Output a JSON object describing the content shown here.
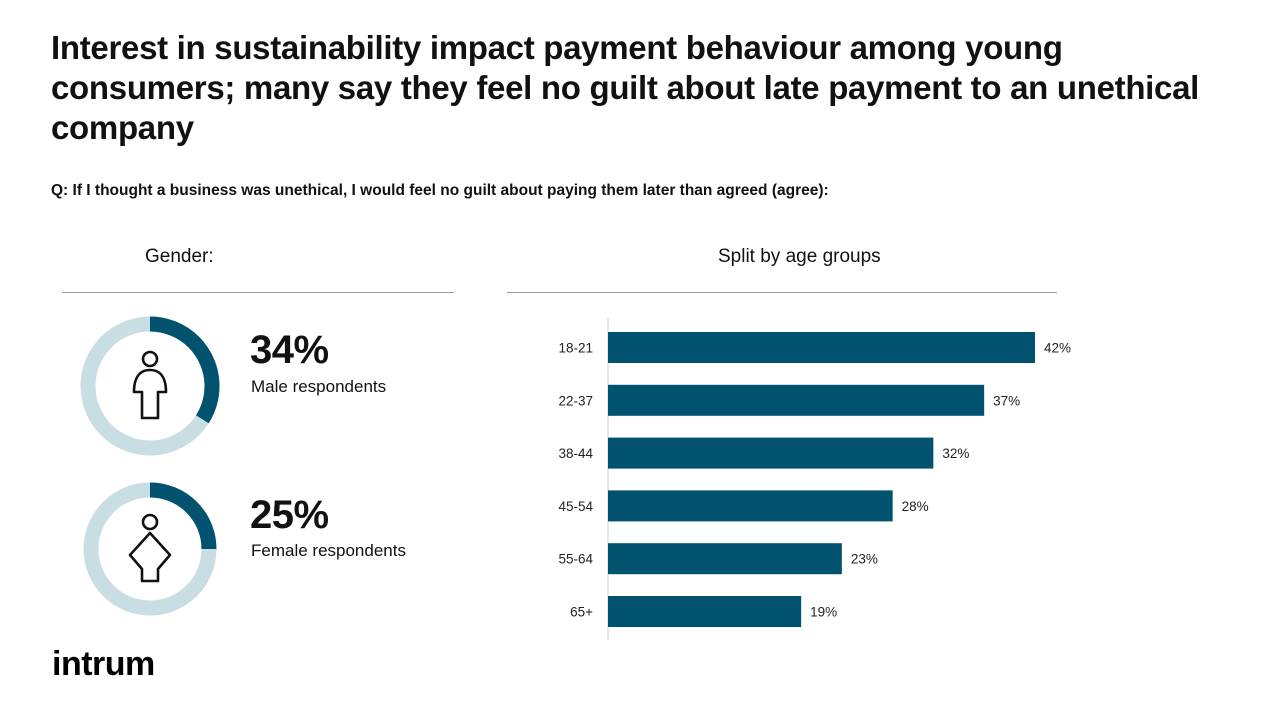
{
  "title": "Interest in sustainability impact payment behaviour among young consumers; many say they feel no guilt about late payment to an unethical company",
  "question": "Q: If I thought a business was unethical, I would feel no guilt about paying them later than agreed (agree):",
  "gender": {
    "heading": "Gender:",
    "items": [
      {
        "pct_label": "34%",
        "value": 34,
        "label": "Male respondents",
        "icon": "male-person-icon"
      },
      {
        "pct_label": "25%",
        "value": 25,
        "label": "Female respondents",
        "icon": "female-person-icon"
      }
    ]
  },
  "age_heading": "Split by age groups",
  "colors": {
    "accent": "#00526E",
    "track": "#C9DEE2"
  },
  "logo": "intrum",
  "chart_data": {
    "type": "bar",
    "orientation": "horizontal",
    "title": "Split by age groups",
    "categories": [
      "18-21",
      "22-37",
      "38-44",
      "45-54",
      "55-64",
      "65+"
    ],
    "values": [
      42,
      37,
      32,
      28,
      23,
      19
    ],
    "value_labels": [
      "42%",
      "37%",
      "32%",
      "28%",
      "23%",
      "19%"
    ],
    "xlim": [
      0,
      42
    ],
    "grid": false
  }
}
